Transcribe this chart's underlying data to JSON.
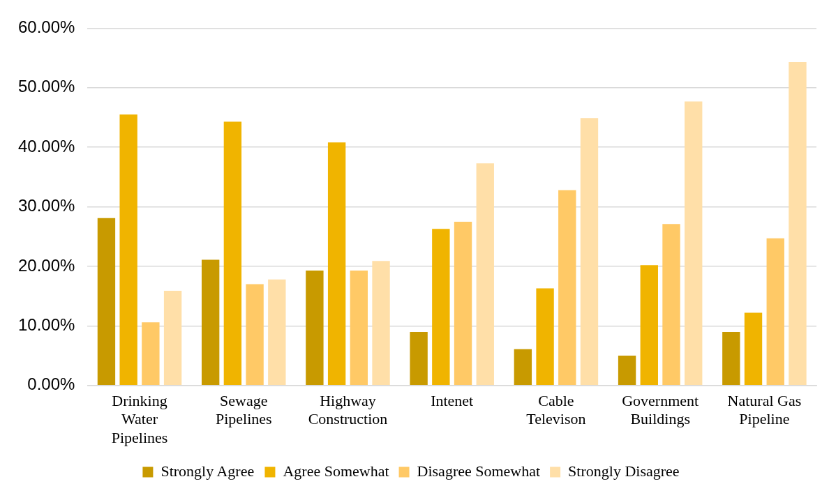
{
  "chart_data": {
    "type": "bar",
    "categories": [
      "Drinking Water Pipelines",
      "Sewage Pipelines",
      "Highway Construction",
      "Intenet",
      "Cable Televison",
      "Government Buildings",
      "Natural Gas Pipeline"
    ],
    "series": [
      {
        "name": "Strongly Agree",
        "color": "#c89a00",
        "values": [
          28.1,
          21.1,
          19.3,
          9.0,
          6.1,
          5.0,
          9.0
        ]
      },
      {
        "name": "Agree Somewhat",
        "color": "#f0b400",
        "values": [
          45.5,
          44.3,
          40.8,
          26.3,
          16.3,
          20.2,
          12.2
        ]
      },
      {
        "name": "Disagree Somewhat",
        "color": "#ffc966",
        "values": [
          10.6,
          17.0,
          19.3,
          27.5,
          32.8,
          27.1,
          24.7
        ]
      },
      {
        "name": "Strongly Disagree",
        "color": "#ffdfa8",
        "values": [
          15.9,
          17.8,
          20.9,
          37.3,
          44.9,
          47.7,
          54.3
        ]
      }
    ],
    "ylim": [
      0,
      60
    ],
    "yticks": [
      {
        "value": 0,
        "label": "0.00%"
      },
      {
        "value": 10,
        "label": "10.00%"
      },
      {
        "value": 20,
        "label": "20.00%"
      },
      {
        "value": 30,
        "label": "30.00%"
      },
      {
        "value": 40,
        "label": "40.00%"
      },
      {
        "value": 50,
        "label": "50.00%"
      },
      {
        "value": 60,
        "label": "60.00%"
      }
    ],
    "grid": "y",
    "legend": "bottom"
  }
}
